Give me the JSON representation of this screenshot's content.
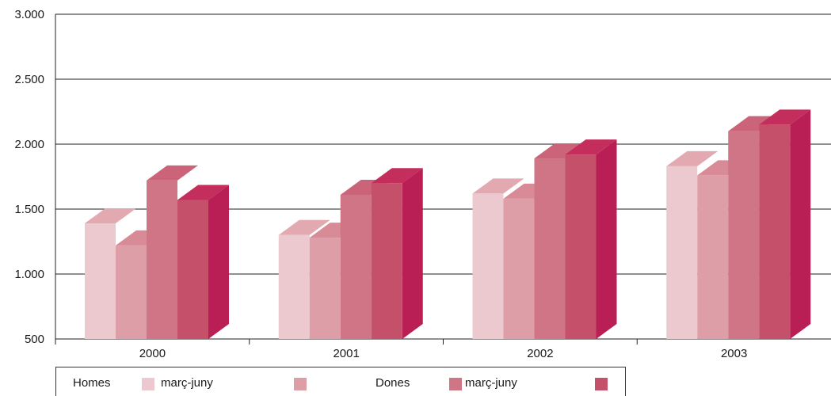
{
  "chart_data": {
    "type": "bar",
    "categories": [
      "2000",
      "2001",
      "2002",
      "2003"
    ],
    "series": [
      {
        "name": "Homes març-juny",
        "color": "#ecc9ce",
        "values": [
          1390,
          1300,
          1620,
          1830
        ]
      },
      {
        "name": "",
        "color": "#de9ea8",
        "values": [
          1220,
          1280,
          1580,
          1760
        ]
      },
      {
        "name": "Dones març-juny",
        "color": "#d07585",
        "values": [
          1720,
          1610,
          1890,
          2100
        ]
      },
      {
        "name": "",
        "color": "#c5506a",
        "values": [
          1570,
          1700,
          1920,
          2150
        ]
      }
    ],
    "y_ticks": [
      "3.000",
      "2.500",
      "2.000",
      "1.500",
      "1.000",
      "500"
    ],
    "ylim": [
      500,
      3000
    ],
    "grid": true,
    "legend_position": "bottom",
    "three_d": true
  },
  "legend": {
    "group1": "Homes",
    "group2": "Dones",
    "item1": "març-juny",
    "item3": "març-juny"
  },
  "colors": {
    "side_dark": "#b91f55",
    "top_light_1": "#e3a9b1",
    "top_light_2": "#d88a96",
    "top_mid": "#cb6478",
    "top_dark": "#c42e5d"
  }
}
